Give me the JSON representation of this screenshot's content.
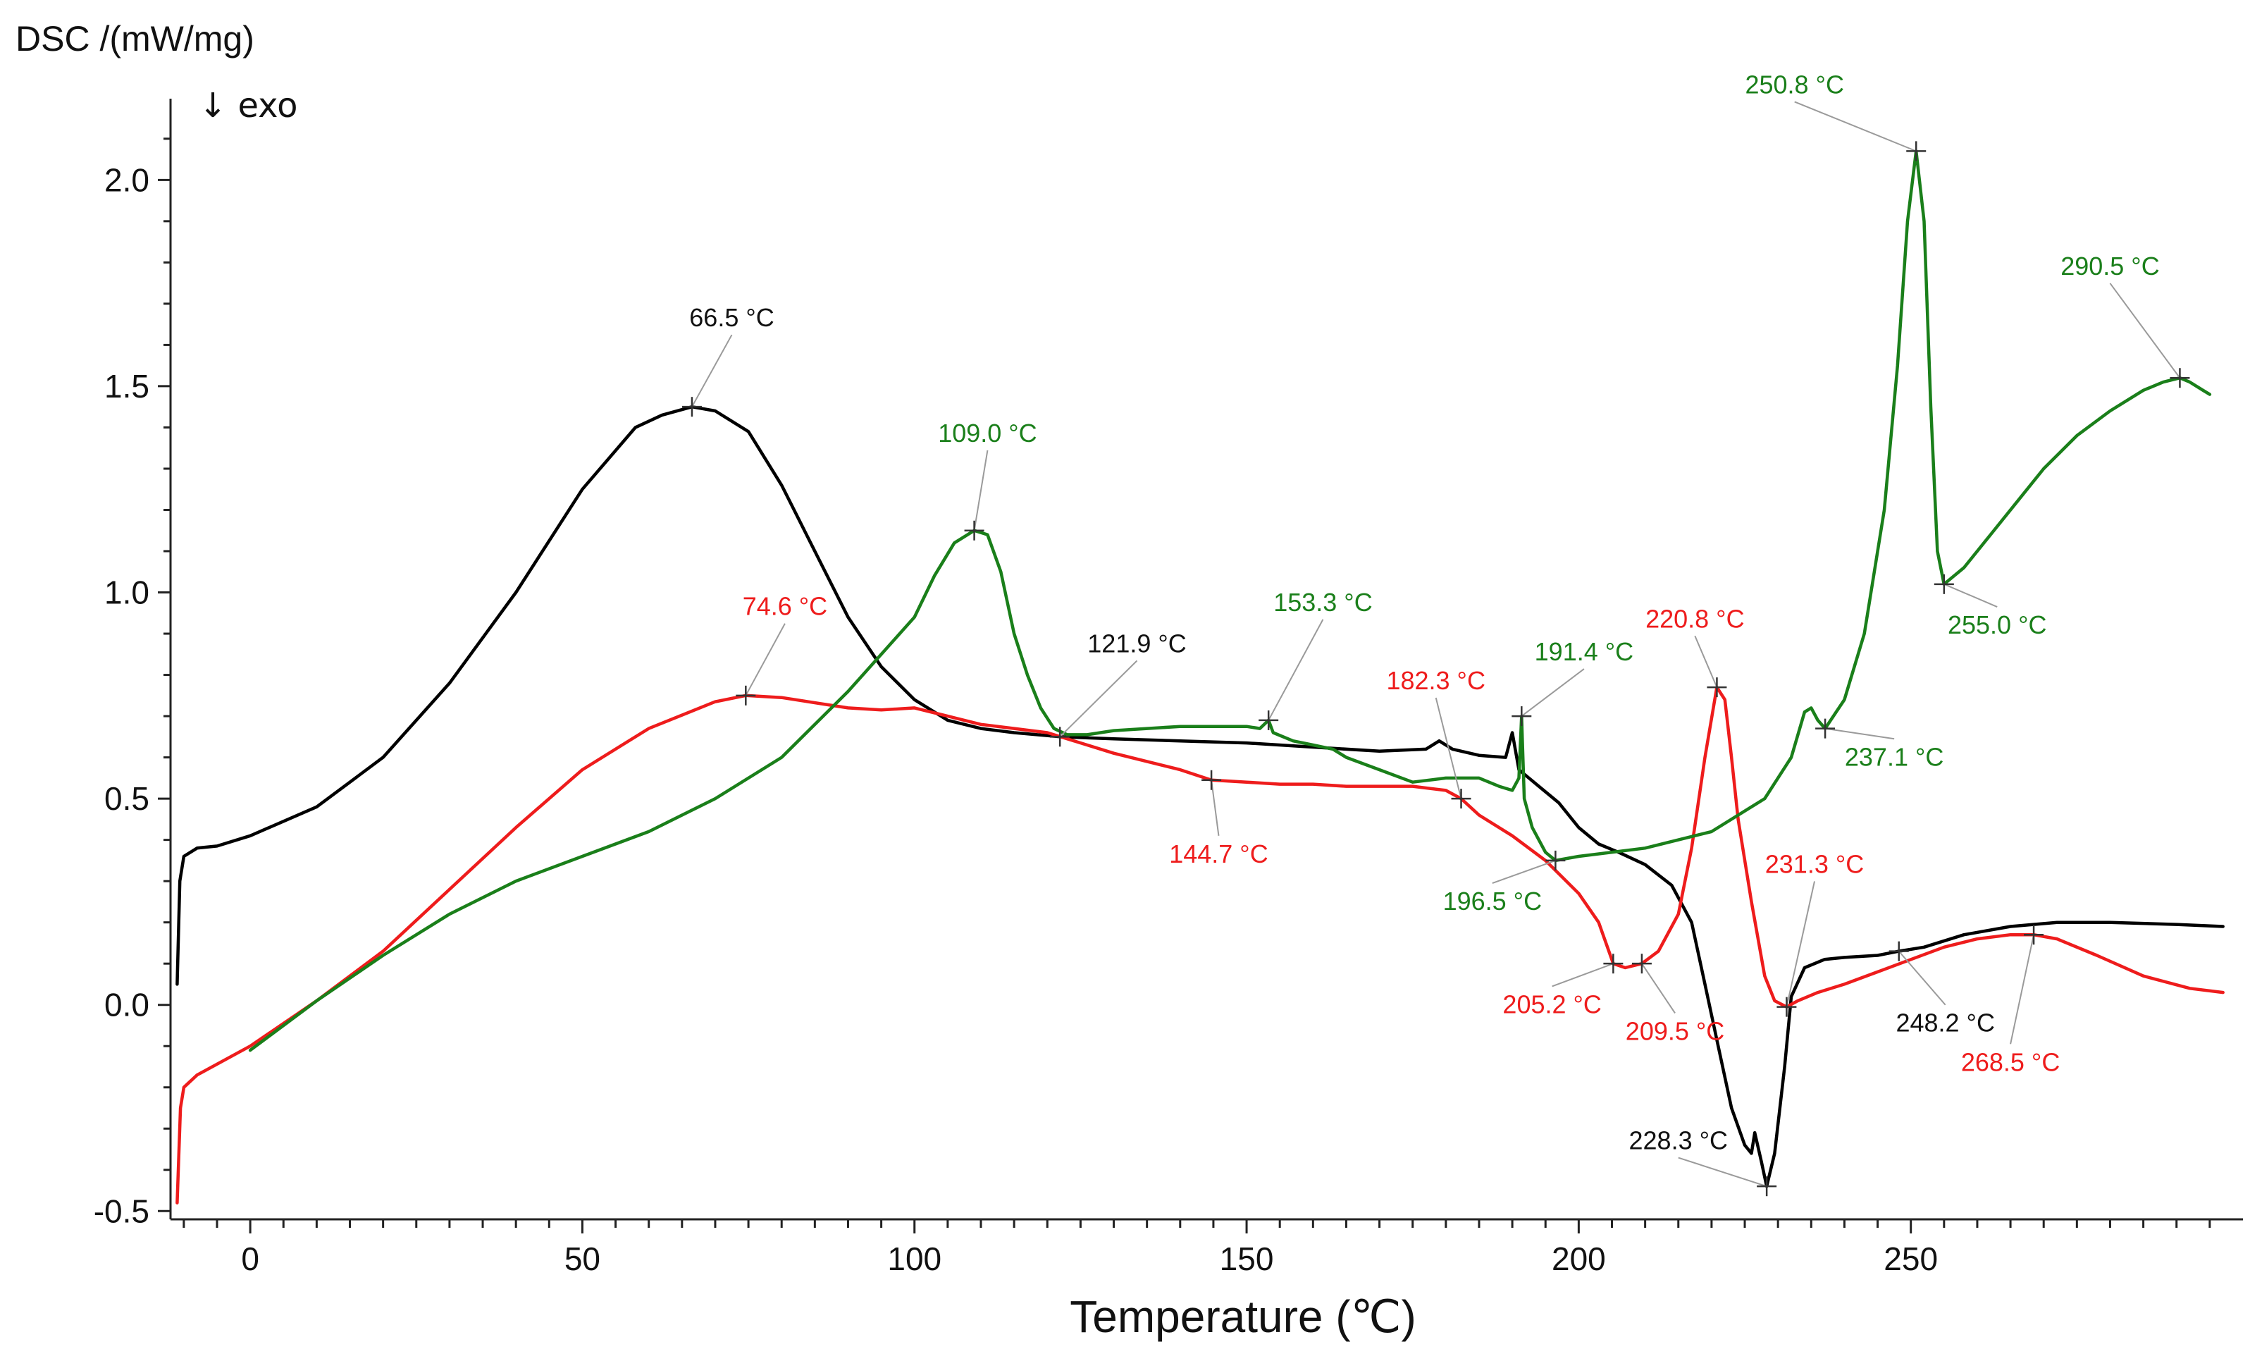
{
  "chart_data": {
    "type": "line",
    "title": "",
    "ylabel": "DSC /(mW/mg)",
    "exo_label": "↓ exo",
    "xlabel": "Temperature (℃)",
    "xlim": [
      -12,
      300
    ],
    "ylim": [
      -0.52,
      2.18
    ],
    "x_ticks": [
      0,
      50,
      100,
      150,
      200,
      250
    ],
    "x_tick_labels": [
      "0",
      "50",
      "100",
      "150",
      "200",
      "250"
    ],
    "y_ticks": [
      -0.5,
      0.0,
      0.5,
      1.0,
      1.5,
      2.0
    ],
    "y_tick_labels": [
      "-0.5",
      "0.0",
      "0.5",
      "1.0",
      "1.5",
      "2.0"
    ],
    "grid": false,
    "series": [
      {
        "name": "black",
        "color": "#000000",
        "points": [
          [
            -11,
            0.05
          ],
          [
            -10.6,
            0.3
          ],
          [
            -10,
            0.36
          ],
          [
            -8,
            0.38
          ],
          [
            -5,
            0.385
          ],
          [
            0,
            0.41
          ],
          [
            10,
            0.48
          ],
          [
            20,
            0.6
          ],
          [
            30,
            0.78
          ],
          [
            40,
            1.0
          ],
          [
            50,
            1.25
          ],
          [
            58,
            1.4
          ],
          [
            62,
            1.43
          ],
          [
            66.5,
            1.45
          ],
          [
            70,
            1.44
          ],
          [
            75,
            1.39
          ],
          [
            80,
            1.26
          ],
          [
            85,
            1.1
          ],
          [
            90,
            0.94
          ],
          [
            95,
            0.82
          ],
          [
            100,
            0.74
          ],
          [
            105,
            0.69
          ],
          [
            110,
            0.67
          ],
          [
            115,
            0.66
          ],
          [
            121.9,
            0.65
          ],
          [
            130,
            0.645
          ],
          [
            140,
            0.64
          ],
          [
            150,
            0.635
          ],
          [
            160,
            0.625
          ],
          [
            170,
            0.615
          ],
          [
            177,
            0.62
          ],
          [
            179,
            0.64
          ],
          [
            181,
            0.62
          ],
          [
            185,
            0.605
          ],
          [
            189,
            0.6
          ],
          [
            190,
            0.66
          ],
          [
            191,
            0.57
          ],
          [
            194,
            0.53
          ],
          [
            197,
            0.49
          ],
          [
            200,
            0.43
          ],
          [
            203,
            0.39
          ],
          [
            206,
            0.37
          ],
          [
            210,
            0.34
          ],
          [
            214,
            0.29
          ],
          [
            217,
            0.2
          ],
          [
            219,
            0.05
          ],
          [
            221,
            -0.1
          ],
          [
            223,
            -0.25
          ],
          [
            225,
            -0.34
          ],
          [
            226,
            -0.36
          ],
          [
            226.5,
            -0.31
          ],
          [
            227.5,
            -0.38
          ],
          [
            228.3,
            -0.44
          ],
          [
            229.5,
            -0.36
          ],
          [
            231,
            -0.15
          ],
          [
            232,
            0.02
          ],
          [
            234,
            0.09
          ],
          [
            237,
            0.11
          ],
          [
            240,
            0.115
          ],
          [
            245,
            0.12
          ],
          [
            248.2,
            0.13
          ],
          [
            252,
            0.14
          ],
          [
            258,
            0.17
          ],
          [
            265,
            0.19
          ],
          [
            272,
            0.2
          ],
          [
            280,
            0.2
          ],
          [
            290,
            0.195
          ],
          [
            297,
            0.19
          ]
        ]
      },
      {
        "name": "red",
        "color": "#ee1c1c",
        "points": [
          [
            -11,
            -0.48
          ],
          [
            -10.5,
            -0.25
          ],
          [
            -10,
            -0.2
          ],
          [
            -8,
            -0.17
          ],
          [
            0,
            -0.1
          ],
          [
            10,
            0.01
          ],
          [
            20,
            0.13
          ],
          [
            30,
            0.28
          ],
          [
            40,
            0.43
          ],
          [
            50,
            0.57
          ],
          [
            60,
            0.67
          ],
          [
            70,
            0.735
          ],
          [
            74.6,
            0.75
          ],
          [
            80,
            0.745
          ],
          [
            90,
            0.72
          ],
          [
            95,
            0.715
          ],
          [
            100,
            0.72
          ],
          [
            105,
            0.7
          ],
          [
            110,
            0.68
          ],
          [
            115,
            0.67
          ],
          [
            120,
            0.66
          ],
          [
            130,
            0.61
          ],
          [
            140,
            0.57
          ],
          [
            144.7,
            0.545
          ],
          [
            150,
            0.54
          ],
          [
            155,
            0.535
          ],
          [
            160,
            0.535
          ],
          [
            165,
            0.53
          ],
          [
            170,
            0.53
          ],
          [
            175,
            0.53
          ],
          [
            180,
            0.52
          ],
          [
            182.3,
            0.5
          ],
          [
            185,
            0.46
          ],
          [
            190,
            0.41
          ],
          [
            195,
            0.35
          ],
          [
            200,
            0.27
          ],
          [
            203,
            0.2
          ],
          [
            205.2,
            0.1
          ],
          [
            207,
            0.09
          ],
          [
            209.5,
            0.1
          ],
          [
            212,
            0.13
          ],
          [
            215,
            0.22
          ],
          [
            217,
            0.38
          ],
          [
            219,
            0.6
          ],
          [
            220.8,
            0.77
          ],
          [
            222,
            0.74
          ],
          [
            223,
            0.6
          ],
          [
            224,
            0.45
          ],
          [
            226,
            0.25
          ],
          [
            228,
            0.07
          ],
          [
            229.5,
            0.01
          ],
          [
            231.3,
            -0.005
          ],
          [
            233,
            0.01
          ],
          [
            236,
            0.03
          ],
          [
            240,
            0.05
          ],
          [
            245,
            0.08
          ],
          [
            250,
            0.11
          ],
          [
            255,
            0.14
          ],
          [
            260,
            0.16
          ],
          [
            265,
            0.17
          ],
          [
            268.5,
            0.17
          ],
          [
            272,
            0.16
          ],
          [
            278,
            0.12
          ],
          [
            285,
            0.07
          ],
          [
            292,
            0.04
          ],
          [
            297,
            0.03
          ]
        ]
      },
      {
        "name": "green",
        "color": "#1a7f1a",
        "points": [
          [
            0,
            -0.11
          ],
          [
            10,
            0.01
          ],
          [
            20,
            0.12
          ],
          [
            30,
            0.22
          ],
          [
            40,
            0.3
          ],
          [
            50,
            0.36
          ],
          [
            60,
            0.42
          ],
          [
            70,
            0.5
          ],
          [
            80,
            0.6
          ],
          [
            90,
            0.76
          ],
          [
            100,
            0.94
          ],
          [
            103,
            1.04
          ],
          [
            106,
            1.12
          ],
          [
            109,
            1.15
          ],
          [
            111,
            1.14
          ],
          [
            113,
            1.05
          ],
          [
            115,
            0.9
          ],
          [
            117,
            0.8
          ],
          [
            119,
            0.72
          ],
          [
            121,
            0.67
          ],
          [
            123,
            0.655
          ],
          [
            126,
            0.655
          ],
          [
            130,
            0.665
          ],
          [
            140,
            0.675
          ],
          [
            150,
            0.675
          ],
          [
            152,
            0.67
          ],
          [
            153.3,
            0.69
          ],
          [
            154,
            0.66
          ],
          [
            157,
            0.64
          ],
          [
            160,
            0.63
          ],
          [
            163,
            0.62
          ],
          [
            165,
            0.6
          ],
          [
            170,
            0.57
          ],
          [
            175,
            0.54
          ],
          [
            180,
            0.55
          ],
          [
            185,
            0.55
          ],
          [
            188,
            0.53
          ],
          [
            190,
            0.52
          ],
          [
            191,
            0.55
          ],
          [
            191.4,
            0.7
          ],
          [
            191.8,
            0.5
          ],
          [
            193,
            0.43
          ],
          [
            195,
            0.37
          ],
          [
            196.5,
            0.35
          ],
          [
            200,
            0.36
          ],
          [
            210,
            0.38
          ],
          [
            220,
            0.42
          ],
          [
            228,
            0.5
          ],
          [
            232,
            0.6
          ],
          [
            234,
            0.71
          ],
          [
            235,
            0.72
          ],
          [
            236,
            0.69
          ],
          [
            237.1,
            0.67
          ],
          [
            240,
            0.74
          ],
          [
            243,
            0.9
          ],
          [
            246,
            1.2
          ],
          [
            248,
            1.55
          ],
          [
            249.5,
            1.9
          ],
          [
            250.8,
            2.07
          ],
          [
            252,
            1.9
          ],
          [
            253,
            1.45
          ],
          [
            254,
            1.1
          ],
          [
            255,
            1.02
          ],
          [
            258,
            1.06
          ],
          [
            262,
            1.14
          ],
          [
            266,
            1.22
          ],
          [
            270,
            1.3
          ],
          [
            275,
            1.38
          ],
          [
            280,
            1.44
          ],
          [
            285,
            1.49
          ],
          [
            288,
            1.51
          ],
          [
            290.5,
            1.52
          ],
          [
            292,
            1.51
          ],
          [
            294,
            1.49
          ],
          [
            295,
            1.48
          ]
        ]
      }
    ],
    "annotations": [
      {
        "label": "66.5 °C",
        "color": "#111111",
        "x": 66.5,
        "y": 1.45,
        "text_x": 72.5,
        "text_y": 1.645
      },
      {
        "label": "74.6 °C",
        "color": "#ee1c1c",
        "x": 74.6,
        "y": 0.75,
        "text_x": 80.5,
        "text_y": 0.945
      },
      {
        "label": "109.0 °C",
        "color": "#1a7f1a",
        "x": 109.0,
        "y": 1.15,
        "text_x": 111.0,
        "text_y": 1.365
      },
      {
        "label": "121.9 °C",
        "color": "#111111",
        "x": 121.9,
        "y": 0.65,
        "text_x": 133.5,
        "text_y": 0.855
      },
      {
        "label": "153.3 °C",
        "color": "#1a7f1a",
        "x": 153.3,
        "y": 0.69,
        "text_x": 161.5,
        "text_y": 0.955
      },
      {
        "label": "144.7 °C",
        "color": "#ee1c1c",
        "x": 144.7,
        "y": 0.545,
        "text_x": 145.8,
        "text_y": 0.345
      },
      {
        "label": "182.3 °C",
        "color": "#ee1c1c",
        "x": 182.3,
        "y": 0.5,
        "text_x": 178.5,
        "text_y": 0.765
      },
      {
        "label": "191.4 °C",
        "color": "#1a7f1a",
        "x": 191.4,
        "y": 0.7,
        "text_x": 200.8,
        "text_y": 0.835
      },
      {
        "label": "196.5 °C",
        "color": "#1a7f1a",
        "x": 196.5,
        "y": 0.35,
        "text_x": 187.0,
        "text_y": 0.23
      },
      {
        "label": "220.8 °C",
        "color": "#ee1c1c",
        "x": 220.8,
        "y": 0.77,
        "text_x": 217.5,
        "text_y": 0.915
      },
      {
        "label": "205.2 °C",
        "color": "#ee1c1c",
        "x": 205.2,
        "y": 0.1,
        "text_x": 196.0,
        "text_y": -0.02
      },
      {
        "label": "209.5 °C",
        "color": "#ee1c1c",
        "x": 209.5,
        "y": 0.1,
        "text_x": 214.5,
        "text_y": -0.085
      },
      {
        "label": "231.3 °C",
        "color": "#ee1c1c",
        "x": 231.3,
        "y": -0.005,
        "text_x": 235.5,
        "text_y": 0.32
      },
      {
        "label": "228.3 °C",
        "color": "#111111",
        "x": 228.3,
        "y": -0.44,
        "text_x": 215.0,
        "text_y": -0.35
      },
      {
        "label": "237.1 °C",
        "color": "#1a7f1a",
        "x": 237.1,
        "y": 0.67,
        "text_x": 247.5,
        "text_y": 0.58
      },
      {
        "label": "248.2 °C",
        "color": "#111111",
        "x": 248.2,
        "y": 0.13,
        "text_x": 255.2,
        "text_y": -0.065
      },
      {
        "label": "268.5 °C",
        "color": "#ee1c1c",
        "x": 268.5,
        "y": 0.17,
        "text_x": 265.0,
        "text_y": -0.16
      },
      {
        "label": "250.8 °C",
        "color": "#1a7f1a",
        "x": 250.8,
        "y": 2.07,
        "text_x": 232.5,
        "text_y": 2.21
      },
      {
        "label": "255.0 °C",
        "color": "#1a7f1a",
        "x": 255.0,
        "y": 1.02,
        "text_x": 263.0,
        "text_y": 0.9
      },
      {
        "label": "290.5 °C",
        "color": "#1a7f1a",
        "x": 290.5,
        "y": 1.52,
        "text_x": 280.0,
        "text_y": 1.77
      }
    ]
  }
}
